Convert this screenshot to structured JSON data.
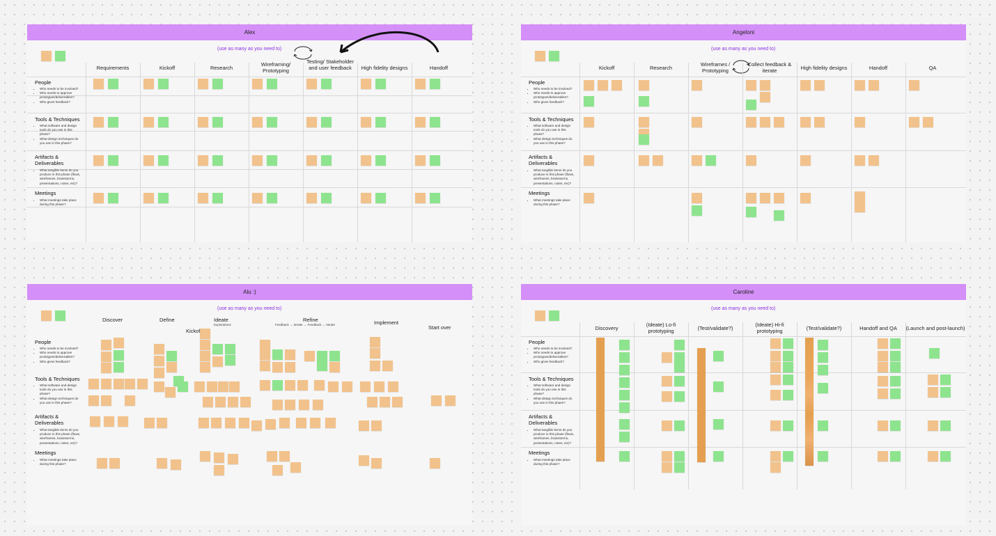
{
  "colors": {
    "header": "#d48ff8",
    "hint": "#8a2be2",
    "sticky_orange": "#f2c28c",
    "sticky_green": "#8ee48e",
    "bar_orange": "#e4a050"
  },
  "icons": [
    "cycle-arrows-icon",
    "curved-arrow-icon"
  ],
  "common": {
    "hint": "(use as many as you need to)",
    "rows": [
      {
        "title": "People",
        "bullets": [
          "Who needs to be involved?",
          "Who needs to approve prototypes/deliverables?",
          "Who gives feedback?"
        ]
      },
      {
        "title": "Tools & Techniques",
        "bullets": [
          "What software and design tools do you use in this phase?",
          "What design techniques do you use in this phase?"
        ]
      },
      {
        "title": "Artifacts & Deliverables",
        "bullets": [
          "What tangible items do you produce in this phase (flows, wireframes, brainstorms, presentations, notes, etc)?"
        ]
      },
      {
        "title": "Meetings",
        "bullets": [
          "What meetings take place during this phase?"
        ]
      }
    ]
  },
  "boards": {
    "alex": {
      "title": "Alex",
      "columns": [
        "Requirements",
        "Kickoff",
        "Research",
        "Wireframing/ Prototyping",
        "Testing/ Stakeholder and user feedback",
        "High fidelity designs",
        "Handoff"
      ]
    },
    "angeloni": {
      "title": "Angeloni",
      "columns": [
        "Kickoff",
        "Research",
        "Wireframes / Prototyping",
        "Collect feedback & iterate",
        "High fidelity designs",
        "Handoff",
        "QA"
      ]
    },
    "alu": {
      "title": "Alu :)",
      "phases": {
        "discover": "Discover",
        "define": "Define",
        "ideate": "Ideate",
        "ideate_sub": "Explorations",
        "kickoff": "Kickoff",
        "refine": "Refine",
        "refine_sub": "Feedback → Iterate → Feedback → Iterate",
        "implement": "Implement",
        "start_over": "Start over"
      }
    },
    "caroline": {
      "title": "Caroline",
      "columns": [
        "Discovery",
        "(Ideate) Lo-fi prototyping",
        "(Test/validate?)",
        "(Ideate) Hi-fi prototyping",
        "(Test/validate?)",
        "Handoff and QA",
        "(Launch and post-launch)"
      ]
    }
  }
}
